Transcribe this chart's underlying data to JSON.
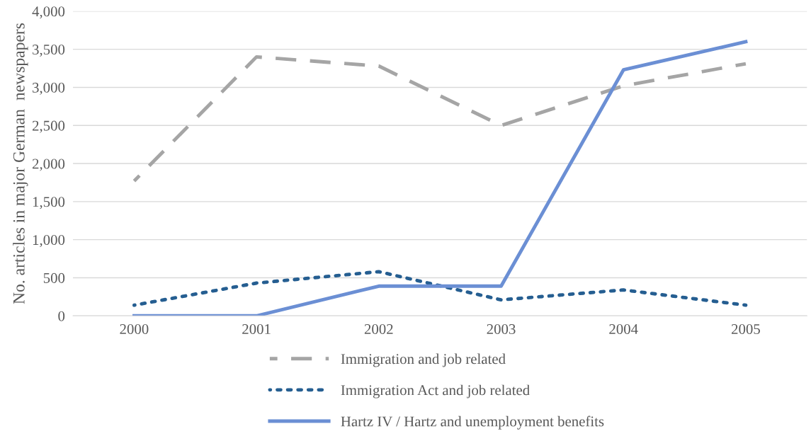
{
  "chart_data": {
    "type": "line",
    "ylabel": "No. articles in major German  newspapers",
    "categories": [
      "2000",
      "2001",
      "2002",
      "2003",
      "2004",
      "2005"
    ],
    "series": [
      {
        "name": "Immigration and job related",
        "color": "#a5a5a5",
        "line_style": "dashed",
        "values": [
          1770,
          3400,
          3280,
          2500,
          3020,
          3310
        ]
      },
      {
        "name": "Immigration Act and job related",
        "color": "#255e91",
        "line_style": "dotted",
        "values": [
          140,
          430,
          580,
          210,
          340,
          140
        ]
      },
      {
        "name": "Hartz IV / Hartz and unemployment benefits",
        "color": "#6b8fd4",
        "line_style": "solid",
        "values": [
          0,
          0,
          390,
          390,
          3230,
          3600
        ]
      }
    ],
    "ylim": [
      0,
      4000
    ],
    "yticks": [
      {
        "value": 0,
        "label": "0"
      },
      {
        "value": 500,
        "label": "500"
      },
      {
        "value": 1000,
        "label": "1,000"
      },
      {
        "value": 1500,
        "label": "1,500"
      },
      {
        "value": 2000,
        "label": "2,000"
      },
      {
        "value": 2500,
        "label": "2,500"
      },
      {
        "value": 3000,
        "label": "3,000"
      },
      {
        "value": 3500,
        "label": "3,500"
      },
      {
        "value": 4000,
        "label": "4,000"
      }
    ],
    "grid": "y",
    "legend": "bottom",
    "marker": "none"
  }
}
